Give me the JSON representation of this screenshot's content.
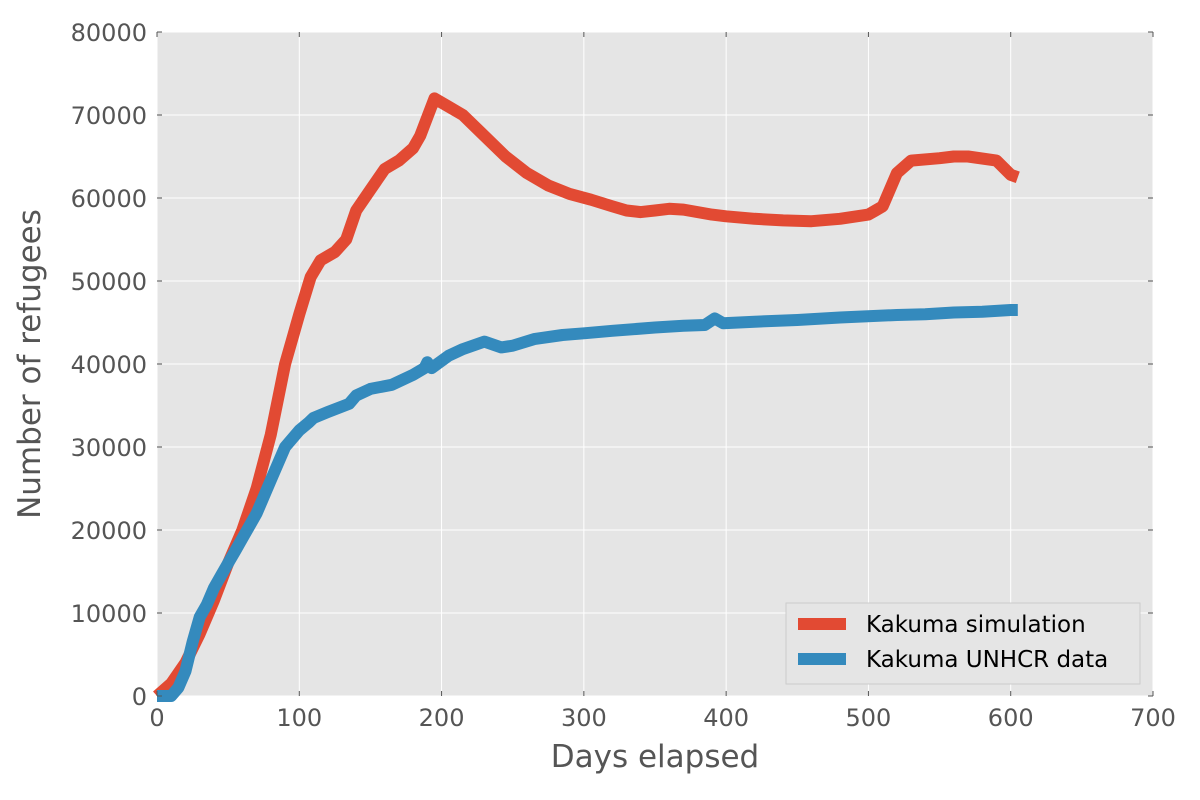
{
  "chart_data": {
    "type": "line",
    "title": "",
    "xlabel": "Days elapsed",
    "ylabel": "Number of refugees",
    "xlim": [
      0,
      700
    ],
    "ylim": [
      0,
      80000
    ],
    "xticks": [
      0,
      100,
      200,
      300,
      400,
      500,
      600,
      700
    ],
    "yticks": [
      0,
      10000,
      20000,
      30000,
      40000,
      50000,
      60000,
      70000,
      80000
    ],
    "grid": true,
    "legend_position": "lower-right",
    "series": [
      {
        "name": "Kakuma simulation",
        "color": "#E24A33",
        "x": [
          0,
          10,
          20,
          30,
          40,
          50,
          60,
          70,
          80,
          90,
          95,
          100,
          108,
          115,
          125,
          133,
          140,
          150,
          160,
          170,
          180,
          185,
          195,
          205,
          215,
          230,
          245,
          260,
          275,
          290,
          305,
          320,
          330,
          340,
          350,
          360,
          370,
          380,
          390,
          400,
          420,
          440,
          460,
          480,
          500,
          505,
          510,
          520,
          530,
          550,
          560,
          570,
          590,
          600,
          605
        ],
        "y": [
          0,
          1500,
          4000,
          7500,
          11500,
          16000,
          20000,
          25000,
          31500,
          40000,
          43000,
          46000,
          50500,
          52500,
          53500,
          55000,
          58500,
          61000,
          63500,
          64500,
          66000,
          67500,
          72000,
          71000,
          70000,
          67500,
          65000,
          63000,
          61500,
          60500,
          59800,
          59000,
          58500,
          58300,
          58500,
          58700,
          58600,
          58300,
          58000,
          57800,
          57500,
          57300,
          57200,
          57500,
          58000,
          58500,
          59000,
          63000,
          64500,
          64800,
          65000,
          65000,
          64500,
          62800,
          62500
        ]
      },
      {
        "name": "Kakuma UNHCR data",
        "color": "#348ABD",
        "x": [
          0,
          10,
          15,
          20,
          25,
          30,
          35,
          40,
          45,
          50,
          55,
          60,
          70,
          80,
          90,
          100,
          107,
          110,
          120,
          135,
          140,
          150,
          165,
          180,
          188,
          190,
          193,
          205,
          215,
          230,
          242,
          250,
          265,
          285,
          300,
          320,
          350,
          370,
          385,
          392,
          398,
          420,
          450,
          480,
          520,
          540,
          560,
          580,
          600,
          605
        ],
        "y": [
          0,
          0,
          1000,
          3000,
          6500,
          9500,
          11000,
          13000,
          14500,
          16000,
          17500,
          19000,
          22000,
          26000,
          30000,
          32000,
          33000,
          33500,
          34200,
          35200,
          36200,
          37000,
          37500,
          38700,
          39500,
          40200,
          39500,
          41000,
          41800,
          42700,
          42000,
          42200,
          43000,
          43500,
          43700,
          44000,
          44400,
          44600,
          44700,
          45500,
          44900,
          45100,
          45300,
          45600,
          45900,
          46000,
          46200,
          46300,
          46500,
          46500
        ]
      }
    ]
  },
  "colors": {
    "plot_background": "#E5E5E5",
    "grid": "#FFFFFF",
    "tick_text": "#555555"
  }
}
